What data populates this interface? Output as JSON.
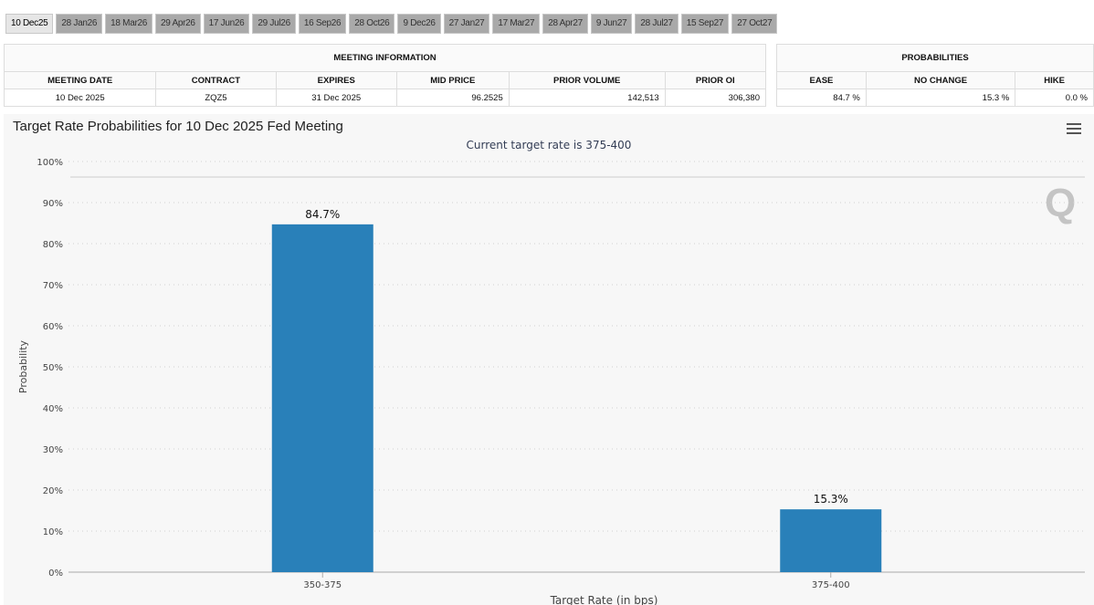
{
  "tabs": [
    "10 Dec25",
    "28 Jan26",
    "18 Mar26",
    "29 Apr26",
    "17 Jun26",
    "29 Jul26",
    "16 Sep26",
    "28 Oct26",
    "9 Dec26",
    "27 Jan27",
    "17 Mar27",
    "28 Apr27",
    "9 Jun27",
    "28 Jul27",
    "15 Sep27",
    "27 Oct27"
  ],
  "meeting_info": {
    "title": "MEETING INFORMATION",
    "headers": [
      "MEETING DATE",
      "CONTRACT",
      "EXPIRES",
      "MID PRICE",
      "PRIOR VOLUME",
      "PRIOR OI"
    ],
    "row": [
      "10 Dec 2025",
      "ZQZ5",
      "31 Dec 2025",
      "96.2525",
      "142,513",
      "306,380"
    ]
  },
  "probabilities": {
    "title": "PROBABILITIES",
    "headers": [
      "EASE",
      "NO CHANGE",
      "HIKE"
    ],
    "row": [
      "84.7 %",
      "15.3 %",
      "0.0 %"
    ]
  },
  "chart_data": {
    "type": "bar",
    "title": "Target Rate Probabilities for 10 Dec 2025 Fed Meeting",
    "subtitle": "Current target rate is 375-400",
    "xlabel": "Target Rate (in bps)",
    "ylabel": "Probability",
    "categories": [
      "350-375",
      "375-400"
    ],
    "values": [
      84.7,
      15.3
    ],
    "data_labels": [
      "84.7%",
      "15.3%"
    ],
    "ylim": [
      0,
      100
    ],
    "yticks": [
      "0%",
      "10%",
      "20%",
      "30%",
      "40%",
      "50%",
      "60%",
      "70%",
      "80%",
      "90%",
      "100%"
    ],
    "grid": true,
    "bar_color": "#2980b9"
  }
}
